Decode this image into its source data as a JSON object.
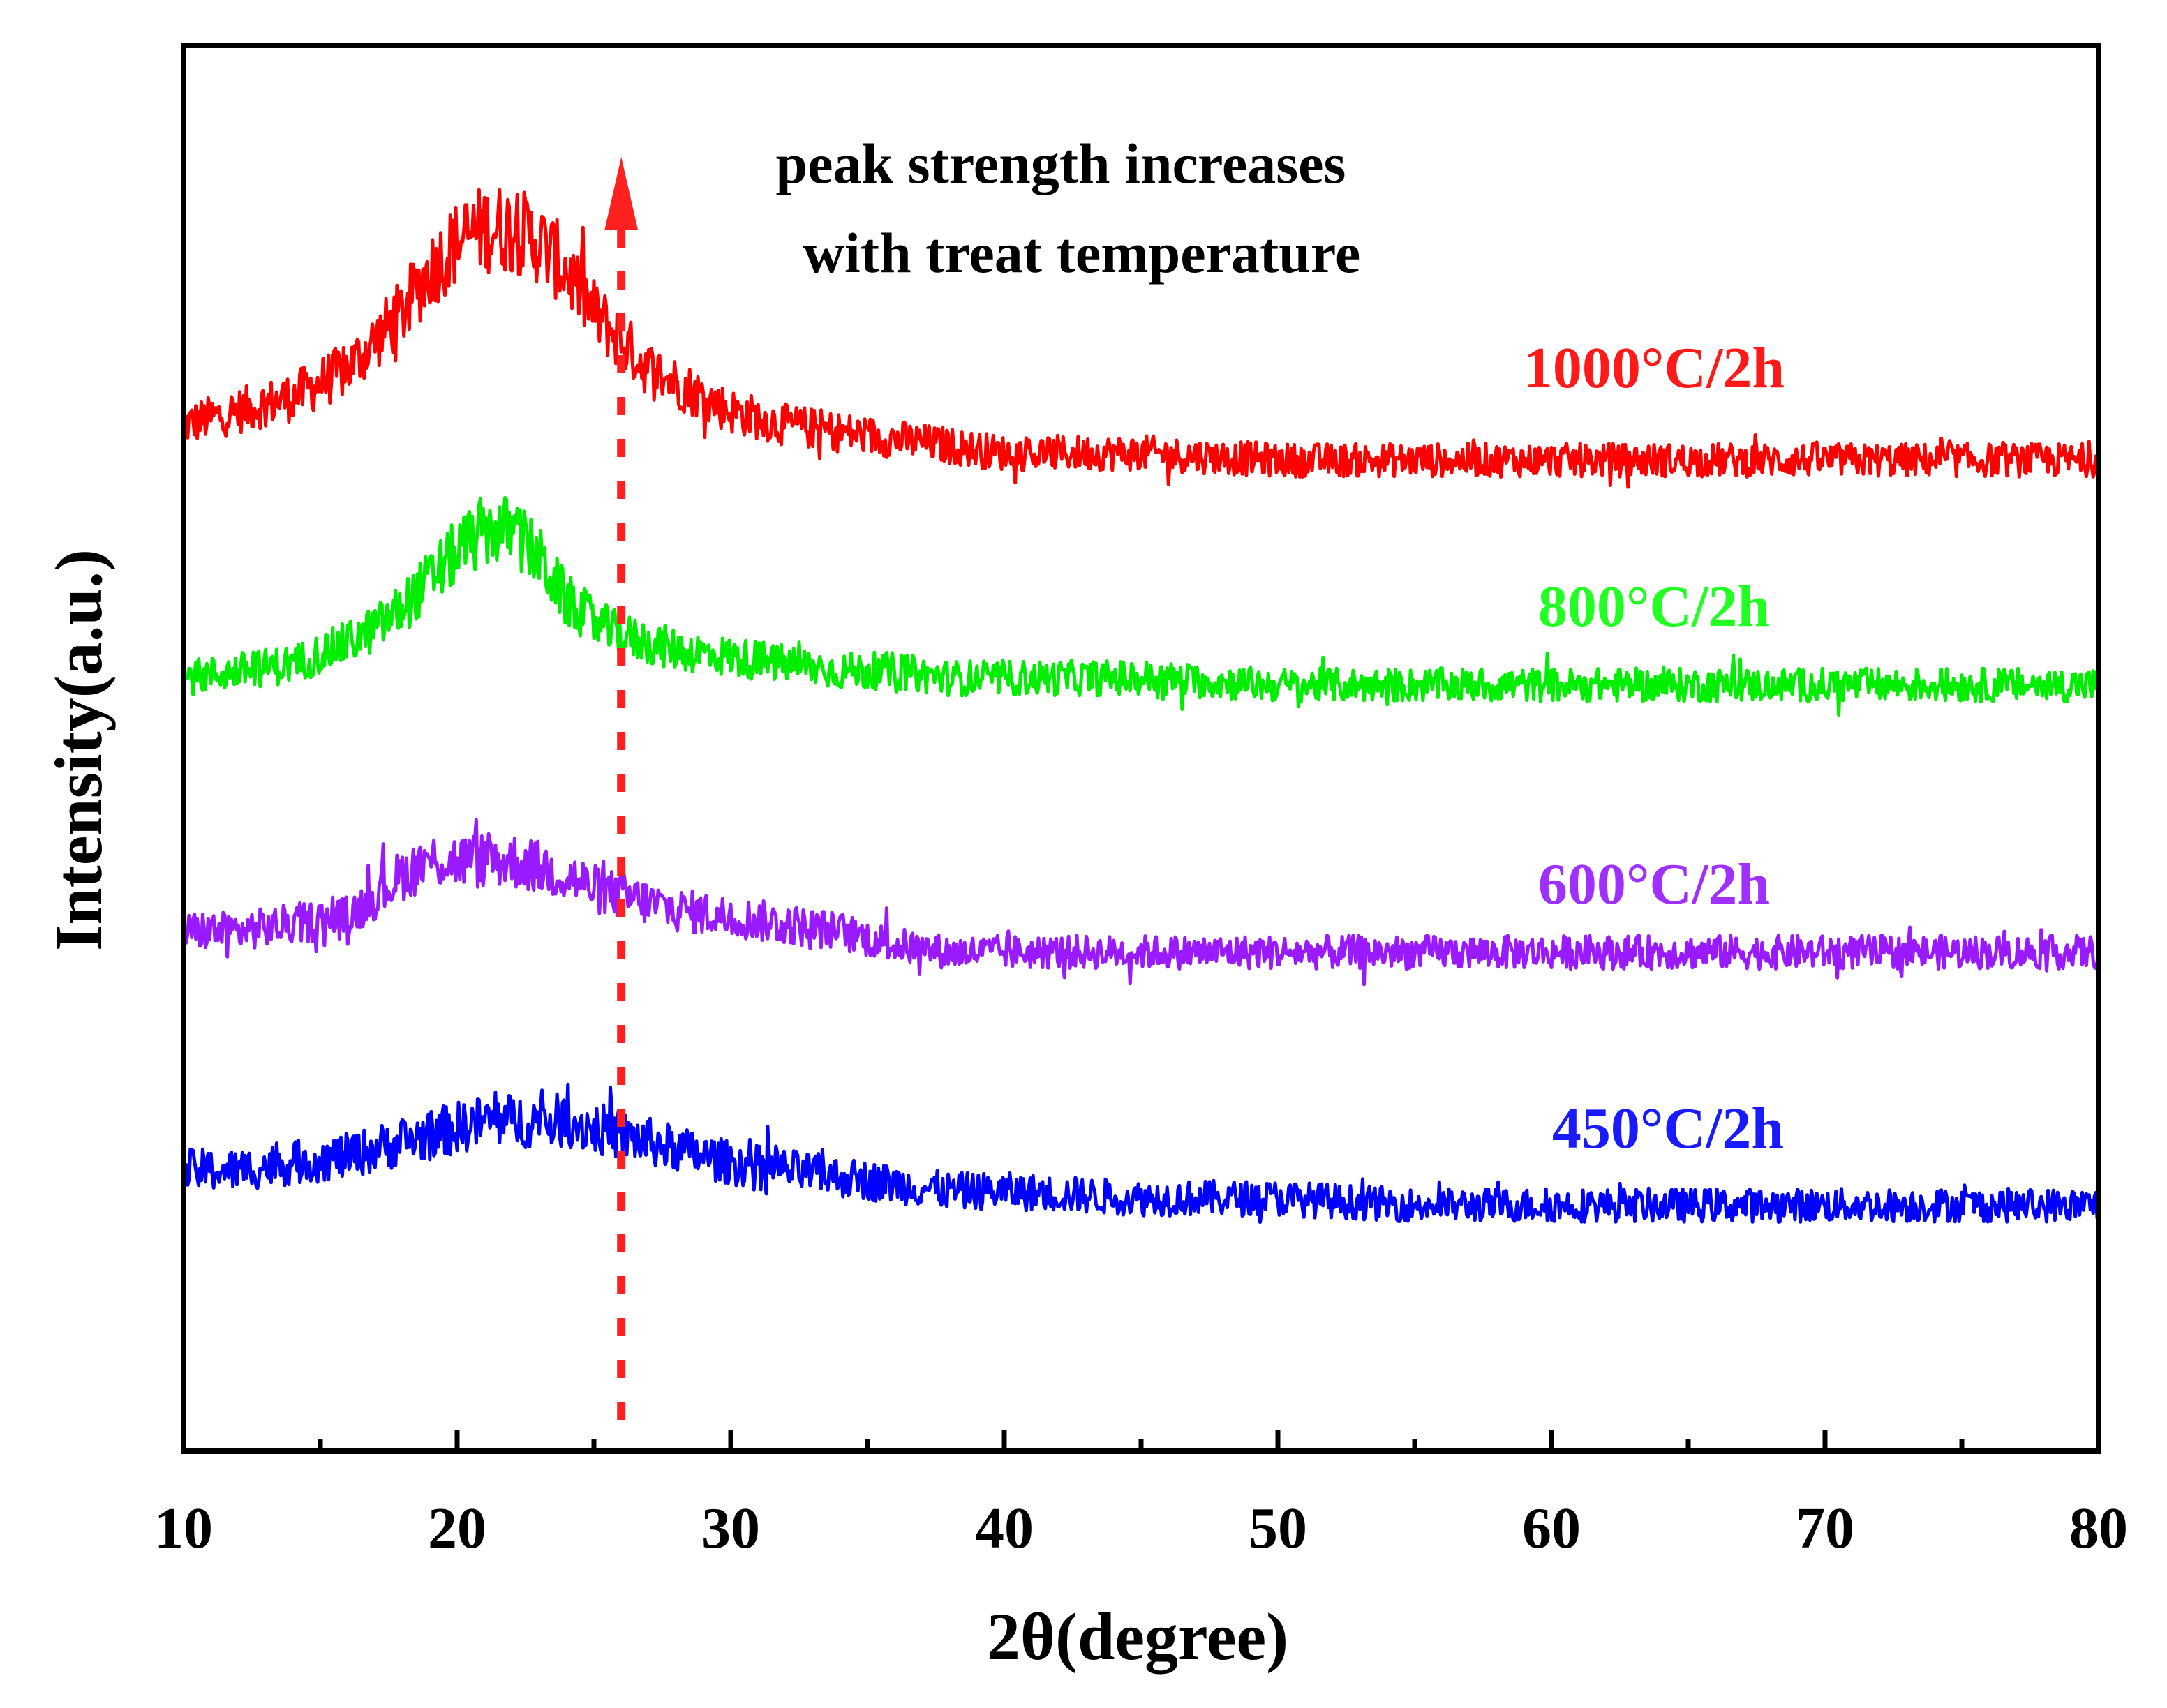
{
  "chart_data": {
    "type": "line",
    "title": "",
    "xlabel": "2θ(degree)",
    "ylabel": "Intensity(a.u.)",
    "xlim": [
      10,
      80
    ],
    "ylim": [
      0,
      100
    ],
    "xticks": [
      10,
      20,
      30,
      40,
      50,
      60,
      70,
      80
    ],
    "xtick_labels": [
      "10",
      "20",
      "30",
      "40",
      "50",
      "60",
      "70",
      "80"
    ],
    "yticks_shown": false,
    "grid": false,
    "legend": "none",
    "annotation": {
      "lines": [
        "peak strength increases",
        "with treat temperature"
      ],
      "marker_x": 26,
      "arrow_color": "#ff2020"
    },
    "series": [
      {
        "name": "1000°C/2h",
        "color": "#ff0000",
        "label_color": "#ff1a1a",
        "x": [
          10,
          12,
          14,
          16,
          17,
          18,
          19,
          20,
          21,
          22,
          23,
          24,
          25,
          26,
          27,
          28,
          29,
          30,
          32,
          34,
          36,
          38,
          40,
          45,
          50,
          55,
          60,
          65,
          70,
          75,
          80
        ],
        "y": [
          73,
          74,
          75,
          77,
          79,
          81,
          84,
          86,
          87,
          87,
          86,
          84,
          81,
          79,
          77,
          76,
          75,
          74,
          73,
          72.5,
          72,
          71.5,
          71,
          71,
          70.5,
          70.5,
          70.5,
          70.5,
          70.5,
          70.5,
          70.5
        ]
      },
      {
        "name": "800°C/2h",
        "color": "#00ee00",
        "label_color": "#22ff22",
        "x": [
          10,
          12,
          14,
          16,
          17,
          18,
          19,
          20,
          21,
          22,
          23,
          24,
          25,
          26,
          27,
          28,
          30,
          32,
          34,
          36,
          38,
          40,
          45,
          50,
          55,
          60,
          65,
          70,
          75,
          80
        ],
        "y": [
          55,
          55.5,
          56,
          57.5,
          58.5,
          60,
          62,
          64,
          65.5,
          65.5,
          63.5,
          60.5,
          59,
          58,
          57.5,
          57,
          56.5,
          56,
          55.5,
          55.5,
          55,
          55,
          55,
          54.5,
          54.5,
          54.5,
          54.5,
          54.5,
          54.5,
          54.5
        ]
      },
      {
        "name": "600°C/2h",
        "color": "#9a1aff",
        "label_color": "#a030ff",
        "x": [
          10,
          12,
          14,
          16,
          17,
          18,
          19,
          20,
          21,
          22,
          23,
          24,
          25,
          26,
          27,
          28,
          30,
          32,
          34,
          36,
          38,
          40,
          45,
          50,
          55,
          60,
          65,
          70,
          75,
          80
        ],
        "y": [
          37,
          37,
          37.5,
          38,
          39.5,
          41,
          42,
          42,
          42,
          42,
          41.5,
          41,
          40,
          39.5,
          39,
          38.5,
          38,
          37.5,
          37,
          36,
          35.5,
          35.5,
          35.5,
          35.5,
          35.5,
          35.5,
          35.5,
          35.5,
          35.5,
          35.5
        ]
      },
      {
        "name": "450°C/2h",
        "color": "#0000ff",
        "label_color": "#1a1aff",
        "x": [
          10,
          12,
          14,
          16,
          17,
          18,
          19,
          20,
          21,
          22,
          23,
          24,
          25,
          26,
          27,
          28,
          29,
          30,
          32,
          34,
          36,
          38,
          40,
          45,
          50,
          55,
          60,
          65,
          70,
          75,
          80
        ],
        "y": [
          20,
          20,
          20.5,
          21,
          21.5,
          22,
          22.5,
          23,
          23.5,
          23.5,
          23.5,
          23.5,
          23,
          22.5,
          22,
          21.5,
          21,
          20.5,
          20,
          19.5,
          19,
          18.5,
          18.5,
          18,
          18,
          17.5,
          17.5,
          17.5,
          17.5,
          17.5,
          17.5
        ]
      }
    ]
  }
}
